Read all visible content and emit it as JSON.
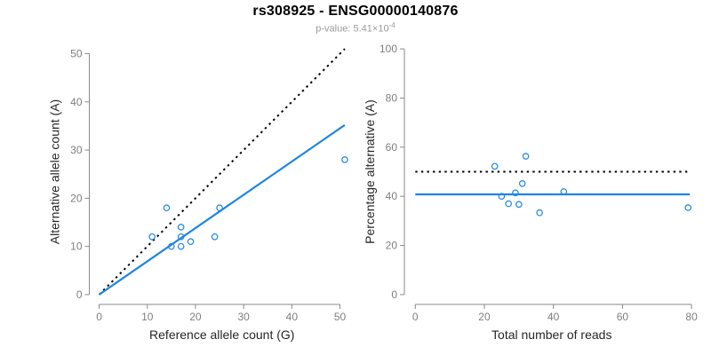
{
  "header": {
    "title": "rs308925 - ENSG00000140876",
    "subtitle": {
      "prefix": "p-value: ",
      "mantissa": "5.41",
      "times": "×10",
      "exponent": "-4"
    }
  },
  "colors": {
    "point_line_blue": "#1E85E2",
    "dotted_black": "#000000",
    "axis_gray": "#8A8A8A",
    "tick_label_gray": "#7F7F7F",
    "axis_title_color": "#262626",
    "subtitle_gray": "#9B9B9B",
    "title_color": "#000000",
    "background": "#FFFFFF"
  },
  "chart_data": [
    {
      "id": "allele-counts",
      "type": "scatter",
      "xlabel": "Reference allele count (G)",
      "ylabel": "Alternative allele count (A)",
      "xlim": [
        0,
        51
      ],
      "ylim": [
        0,
        51
      ],
      "xticks": [
        0,
        10,
        20,
        30,
        40,
        50
      ],
      "yticks": [
        0,
        10,
        20,
        30,
        40,
        50
      ],
      "grid": false,
      "points": [
        [
          11,
          12
        ],
        [
          14,
          18
        ],
        [
          15,
          10
        ],
        [
          17,
          10
        ],
        [
          17,
          12
        ],
        [
          17,
          14
        ],
        [
          19,
          11
        ],
        [
          24,
          12
        ],
        [
          25,
          18
        ],
        [
          51,
          28
        ]
      ],
      "lines": [
        {
          "name": "identity-line",
          "style": "dotted",
          "color": "black",
          "x1": 0,
          "y1": 0,
          "x2": 51,
          "y2": 51
        },
        {
          "name": "fit-line",
          "style": "solid",
          "color": "blue",
          "x1": 0,
          "y1": 0,
          "x2": 51,
          "y2": 35.2
        }
      ]
    },
    {
      "id": "percentage-alternative",
      "type": "scatter",
      "xlabel": "Total number of reads",
      "ylabel": "Percentage alternative (A)",
      "xlim": [
        0,
        79
      ],
      "ylim": [
        0,
        100
      ],
      "xticks": [
        0,
        20,
        40,
        60,
        80
      ],
      "yticks": [
        0,
        20,
        40,
        60,
        80,
        100
      ],
      "grid": false,
      "points": [
        [
          23,
          52.2
        ],
        [
          25,
          40
        ],
        [
          27,
          37
        ],
        [
          29,
          41.4
        ],
        [
          30,
          36.7
        ],
        [
          31,
          45.2
        ],
        [
          32,
          56.3
        ],
        [
          36,
          33.3
        ],
        [
          43,
          41.9
        ],
        [
          79,
          35.4
        ]
      ],
      "lines": [
        {
          "name": "expected-50-line",
          "style": "dotted",
          "color": "black",
          "x1": 0,
          "y1": 50,
          "x2": 79.5,
          "y2": 50
        },
        {
          "name": "mean-ratio-line",
          "style": "solid",
          "color": "blue",
          "x1": 0,
          "y1": 40.8,
          "x2": 79.5,
          "y2": 40.8
        }
      ]
    }
  ]
}
